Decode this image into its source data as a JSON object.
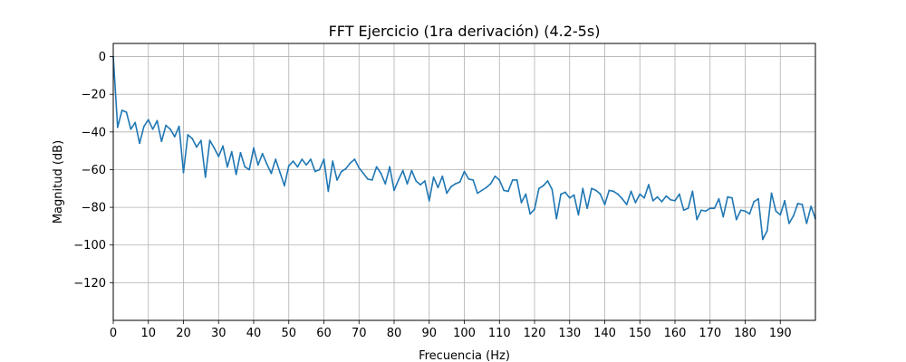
{
  "chart_data": {
    "type": "line",
    "title": "FFT Ejercicio (1ra derivación) (4.2-5s)",
    "xlabel": "Frecuencia (Hz)",
    "ylabel": "Magnitud (dB)",
    "xlim": [
      0,
      200
    ],
    "ylim": [
      -140,
      7
    ],
    "grid": true,
    "x_ticks": [
      0,
      10,
      20,
      30,
      40,
      50,
      60,
      70,
      80,
      90,
      100,
      110,
      120,
      130,
      140,
      150,
      160,
      170,
      180,
      190
    ],
    "y_ticks": [
      0,
      -20,
      -40,
      -60,
      -80,
      -100,
      -120
    ],
    "x_tick_labels": [
      "0",
      "10",
      "20",
      "30",
      "40",
      "50",
      "60",
      "70",
      "80",
      "90",
      "100",
      "110",
      "120",
      "130",
      "140",
      "150",
      "160",
      "170",
      "180",
      "190"
    ],
    "y_tick_labels": [
      "0",
      "−20",
      "−40",
      "−60",
      "−80",
      "−100",
      "−120"
    ],
    "line_color": "#1f77b4",
    "series": [
      {
        "x": [
          0,
          1.25,
          2.5,
          3.75,
          5,
          6.25,
          7.5,
          8.75,
          10,
          11.25,
          12.5,
          13.75,
          15,
          16.25,
          17.5,
          18.75,
          20,
          21.25,
          22.5,
          23.75,
          25,
          26.25,
          27.5,
          28.75,
          30,
          31.25,
          32.5,
          33.75,
          35,
          36.25,
          37.5,
          38.75,
          40,
          41.25,
          42.5,
          43.75,
          45,
          46.25,
          47.5,
          48.75,
          50,
          51.25,
          52.5,
          53.75,
          55,
          56.25,
          57.5,
          58.75,
          60,
          61.25,
          62.5,
          63.75,
          65,
          66.25,
          67.5,
          68.75,
          70,
          71.25,
          72.5,
          73.75,
          75,
          76.25,
          77.5,
          78.75,
          80,
          81.25,
          82.5,
          83.75,
          85,
          86.25,
          87.5,
          88.75,
          90,
          91.25,
          92.5,
          93.75,
          95,
          96.25,
          97.5,
          98.75,
          100,
          101.25,
          102.5,
          103.75,
          105,
          106.25,
          107.5,
          108.75,
          110,
          111.25,
          112.5,
          113.75,
          115,
          116.25,
          117.5,
          118.75,
          120,
          121.25,
          122.5,
          123.75,
          125,
          126.25,
          127.5,
          128.75,
          130,
          131.25,
          132.5,
          133.75,
          135,
          136.25,
          137.5,
          138.75,
          140,
          141.25,
          142.5,
          143.75,
          145,
          146.25,
          147.5,
          148.75,
          150,
          151.25,
          152.5,
          153.75,
          155,
          156.25,
          157.5,
          158.75,
          160,
          161.25,
          162.5,
          163.75,
          165,
          166.25,
          167.5,
          168.75,
          170,
          171.25,
          172.5,
          173.75,
          175,
          176.25,
          177.5,
          178.75,
          180,
          181.25,
          182.5,
          183.75,
          185,
          186.25,
          187.5,
          188.75,
          190,
          191.25,
          192.5,
          193.75,
          195,
          196.25,
          197.5,
          198.75,
          200
        ],
        "y": [
          0,
          -37.5,
          -28.5,
          -29.5,
          -38.5,
          -35,
          -46,
          -37,
          -33.5,
          -38.5,
          -34,
          -45,
          -36.5,
          -38.5,
          -42.5,
          -37,
          -61.5,
          -41.5,
          -43.5,
          -48,
          -44.5,
          -64,
          -44.5,
          -48.5,
          -53,
          -47.5,
          -58.5,
          -50.5,
          -62.5,
          -51,
          -58.5,
          -60,
          -48.5,
          -57.5,
          -51.5,
          -57,
          -62,
          -54.5,
          -61.5,
          -68.5,
          -58,
          -55.5,
          -58.5,
          -54.5,
          -57.5,
          -54.5,
          -61,
          -60,
          -54.5,
          -71.5,
          -55.5,
          -65.5,
          -61,
          -59.5,
          -56.5,
          -54.5,
          -59,
          -62,
          -65,
          -65.5,
          -58.5,
          -62,
          -67.5,
          -58.5,
          -71,
          -65.5,
          -60.5,
          -67.5,
          -60.5,
          -66,
          -68,
          -66,
          -76.5,
          -64,
          -69.5,
          -63.5,
          -72.5,
          -69,
          -67.5,
          -66.5,
          -61,
          -65,
          -65.5,
          -72.5,
          -71,
          -69.5,
          -67.5,
          -63.5,
          -65.5,
          -71,
          -71.5,
          -65.5,
          -65.5,
          -77.5,
          -73,
          -83.5,
          -81,
          -70,
          -68.5,
          -66,
          -70.5,
          -86,
          -73,
          -72,
          -75,
          -73.5,
          -84,
          -70,
          -80.5,
          -70,
          -71,
          -73,
          -78.5,
          -71,
          -71.5,
          -73,
          -75.5,
          -78.5,
          -71.5,
          -77.5,
          -73,
          -75,
          -68,
          -76.5,
          -74.5,
          -77,
          -74,
          -76,
          -76.5,
          -73,
          -81.5,
          -80.5,
          -71.5,
          -86.5,
          -81.5,
          -82,
          -80.5,
          -80.5,
          -75.5,
          -85,
          -74.5,
          -75,
          -86.5,
          -81.5,
          -82,
          -83.5,
          -77,
          -75.5,
          -97,
          -92.5,
          -72.5,
          -82,
          -84,
          -76.5,
          -88.5,
          -84.5,
          -78,
          -78.5,
          -88.5,
          -79.5,
          -86
        ]
      }
    ]
  }
}
